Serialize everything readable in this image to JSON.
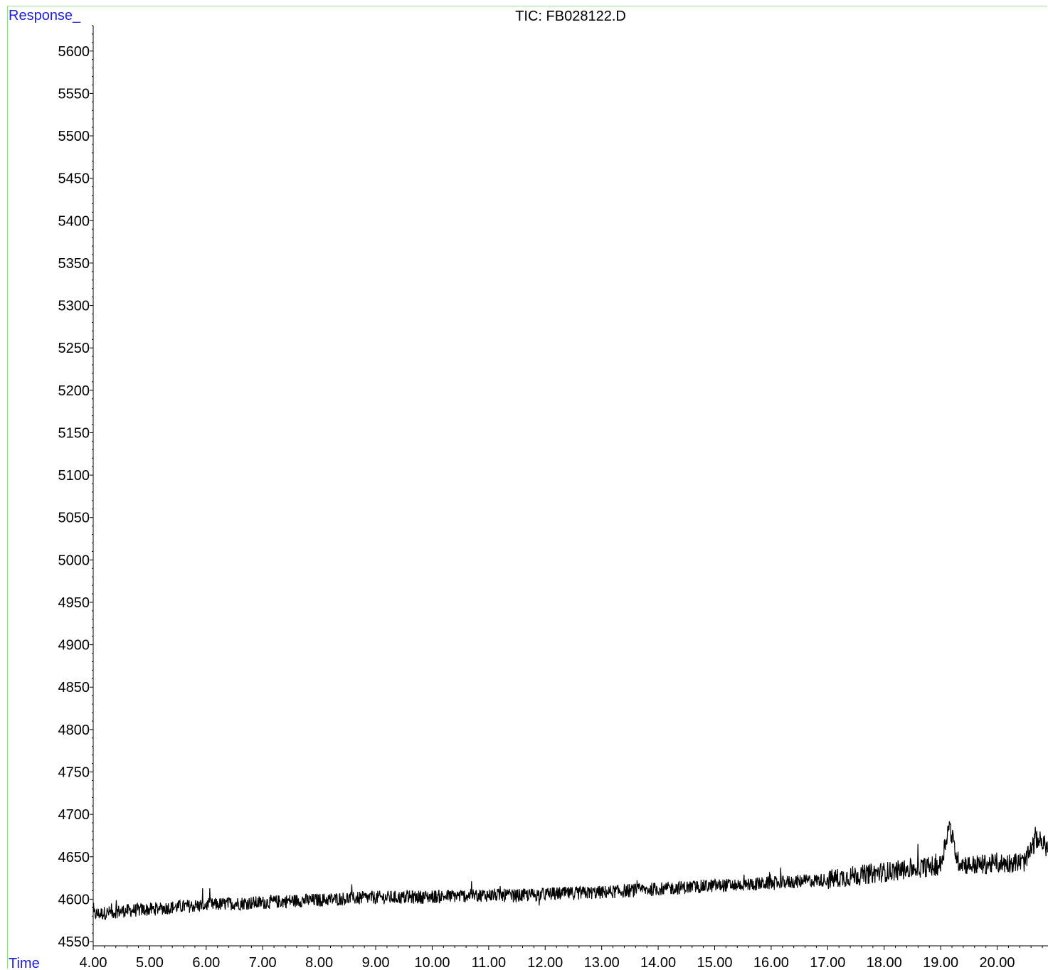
{
  "chart_data": {
    "type": "line",
    "title": "TIC: FB028122.D",
    "ylabel": "Response_",
    "xlabel": "Time",
    "xlim": [
      4.0,
      20.9
    ],
    "ylim": [
      4545,
      5630
    ],
    "x_ticks": [
      "4.00",
      "5.00",
      "6.00",
      "7.00",
      "8.00",
      "9.00",
      "10.00",
      "11.00",
      "12.00",
      "13.00",
      "14.00",
      "15.00",
      "16.00",
      "17.00",
      "18.00",
      "19.00",
      "20.00"
    ],
    "y_ticks": [
      "4550",
      "4600",
      "4650",
      "4700",
      "4750",
      "4800",
      "4850",
      "4900",
      "4950",
      "5000",
      "5050",
      "5100",
      "5150",
      "5200",
      "5250",
      "5300",
      "5350",
      "5400",
      "5450",
      "5500",
      "5550",
      "5600"
    ],
    "grid": false,
    "series": [
      {
        "color": "#000000",
        "x": [
          4.0,
          4.5,
          5.0,
          5.5,
          6.0,
          6.5,
          7.0,
          7.5,
          8.0,
          8.5,
          9.0,
          9.5,
          10.0,
          10.5,
          11.0,
          11.5,
          12.0,
          12.5,
          13.0,
          13.5,
          14.0,
          14.5,
          15.0,
          15.5,
          16.0,
          16.5,
          17.0,
          17.5,
          18.0,
          18.5,
          19.0,
          19.15,
          19.3,
          19.5,
          20.0,
          20.5,
          20.7,
          20.9
        ],
        "values": [
          4582,
          4586,
          4588,
          4591,
          4593,
          4595,
          4596,
          4598,
          4599,
          4601,
          4602,
          4602,
          4603,
          4604,
          4605,
          4604,
          4606,
          4607,
          4608,
          4610,
          4612,
          4614,
          4616,
          4617,
          4619,
          4621,
          4623,
          4628,
          4632,
          4636,
          4640,
          4688,
          4645,
          4640,
          4642,
          4644,
          4672,
          4660
        ]
      }
    ]
  }
}
